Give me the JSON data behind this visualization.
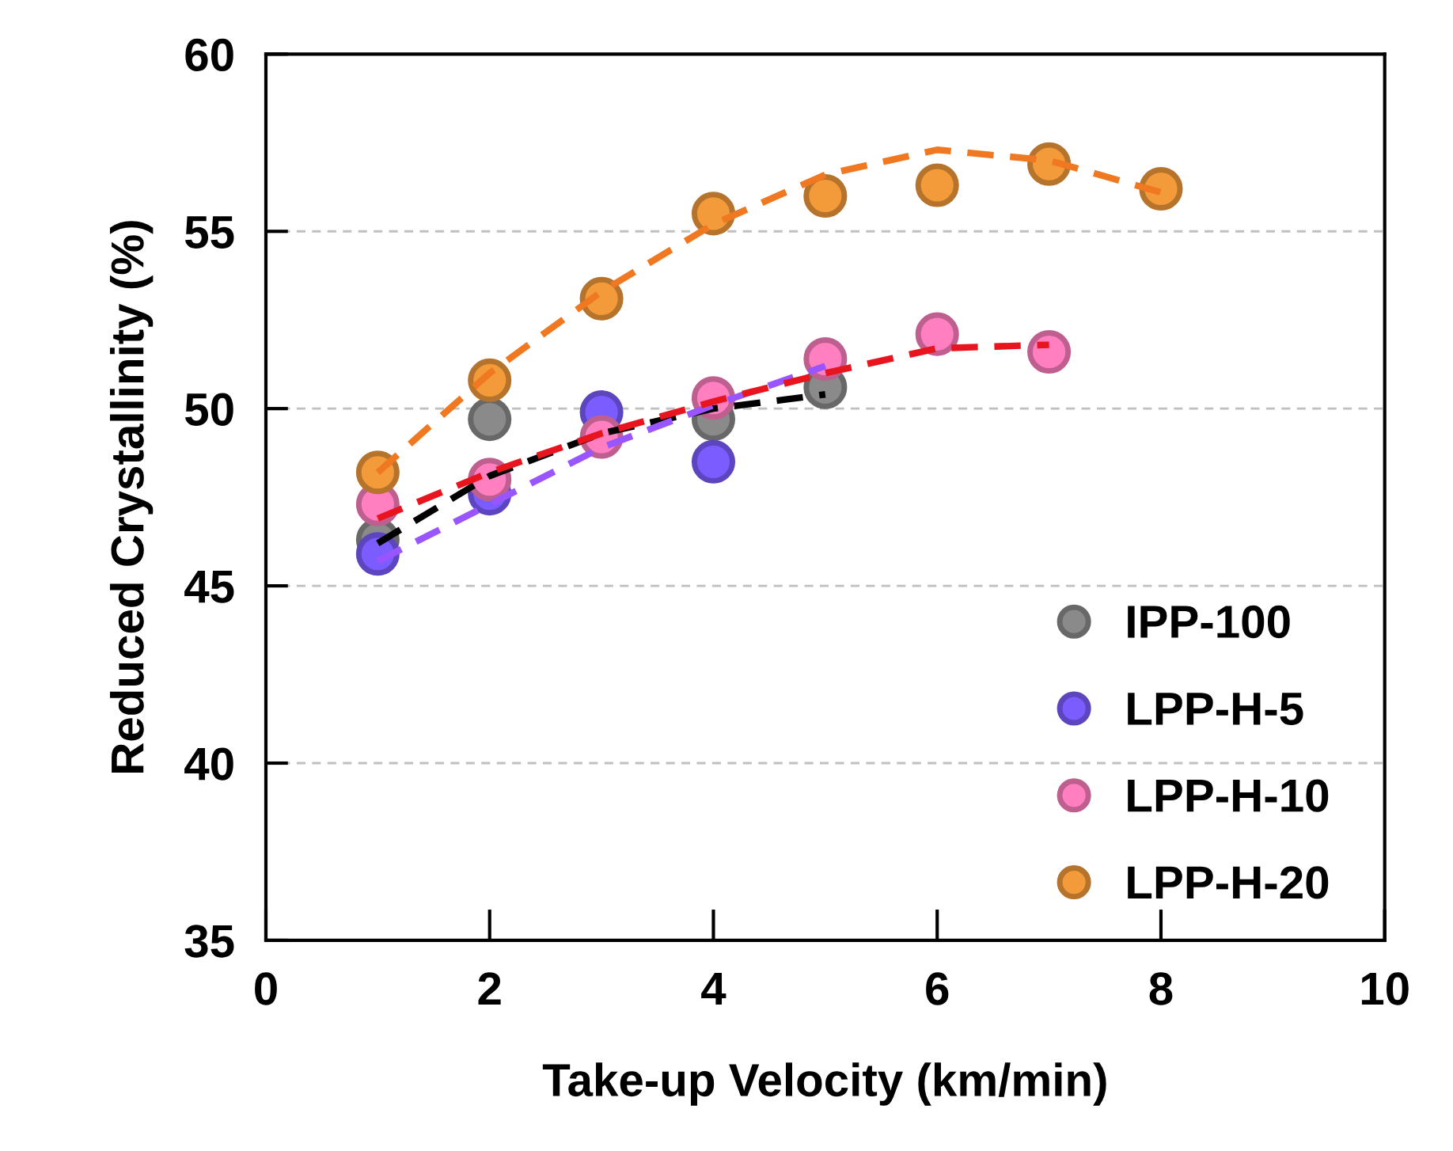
{
  "chart_data": {
    "type": "scatter",
    "xlabel": "Take-up Velocity (km/min)",
    "ylabel": "Reduced Crystallinity (%)",
    "xlim": [
      0,
      10
    ],
    "xticks": [
      0,
      2,
      4,
      6,
      8,
      10
    ],
    "ylim": [
      35,
      60
    ],
    "yticks": [
      35,
      40,
      45,
      50,
      55,
      60
    ],
    "grid": "y",
    "legend": "bottom right",
    "marker": "circle",
    "series": [
      {
        "name": "IPP-100",
        "color": "#8a8a8a",
        "x": [
          1,
          2,
          4,
          5
        ],
        "values": [
          46.3,
          49.7,
          49.7,
          50.6
        ]
      },
      {
        "name": "LPP-H-5",
        "color": "#7a5cff",
        "x": [
          1,
          2,
          3,
          4
        ],
        "values": [
          45.9,
          47.6,
          49.9,
          48.5
        ]
      },
      {
        "name": "LPP-H-10",
        "color": "#ff7fc0",
        "x": [
          1,
          2,
          3,
          4,
          5,
          6,
          7
        ],
        "values": [
          47.3,
          48.0,
          49.2,
          50.3,
          51.4,
          52.1,
          51.6
        ]
      },
      {
        "name": "LPP-H-20",
        "color": "#f39a3a",
        "x": [
          1,
          2,
          3,
          4,
          5,
          6,
          7,
          8
        ],
        "values": [
          48.2,
          50.8,
          53.1,
          55.5,
          56.0,
          56.3,
          56.9,
          56.2
        ]
      },
      {
        "type": "line",
        "marker": "none",
        "line_style": "dashed",
        "color": "#000000",
        "x": [
          1,
          2,
          3,
          4,
          5
        ],
        "values": [
          46.2,
          48.1,
          49.3,
          50.0,
          50.4
        ]
      },
      {
        "type": "line",
        "marker": "none",
        "line_style": "dashed",
        "color": "#9955ff",
        "x": [
          1,
          2,
          3,
          4,
          5
        ],
        "values": [
          45.7,
          47.3,
          48.9,
          50.1,
          51.2
        ]
      },
      {
        "type": "line",
        "marker": "none",
        "line_style": "dashed",
        "color": "#e8141e",
        "x": [
          1,
          2,
          3,
          4,
          5,
          6,
          7
        ],
        "values": [
          46.9,
          48.2,
          49.3,
          50.2,
          51.0,
          51.7,
          51.8
        ]
      },
      {
        "type": "line",
        "marker": "none",
        "line_style": "dashed",
        "color": "#f07820",
        "x": [
          1,
          2,
          3,
          4,
          5,
          6,
          7,
          8
        ],
        "values": [
          48.2,
          51.0,
          53.3,
          55.2,
          56.6,
          57.3,
          57.0,
          56.1
        ]
      }
    ]
  }
}
